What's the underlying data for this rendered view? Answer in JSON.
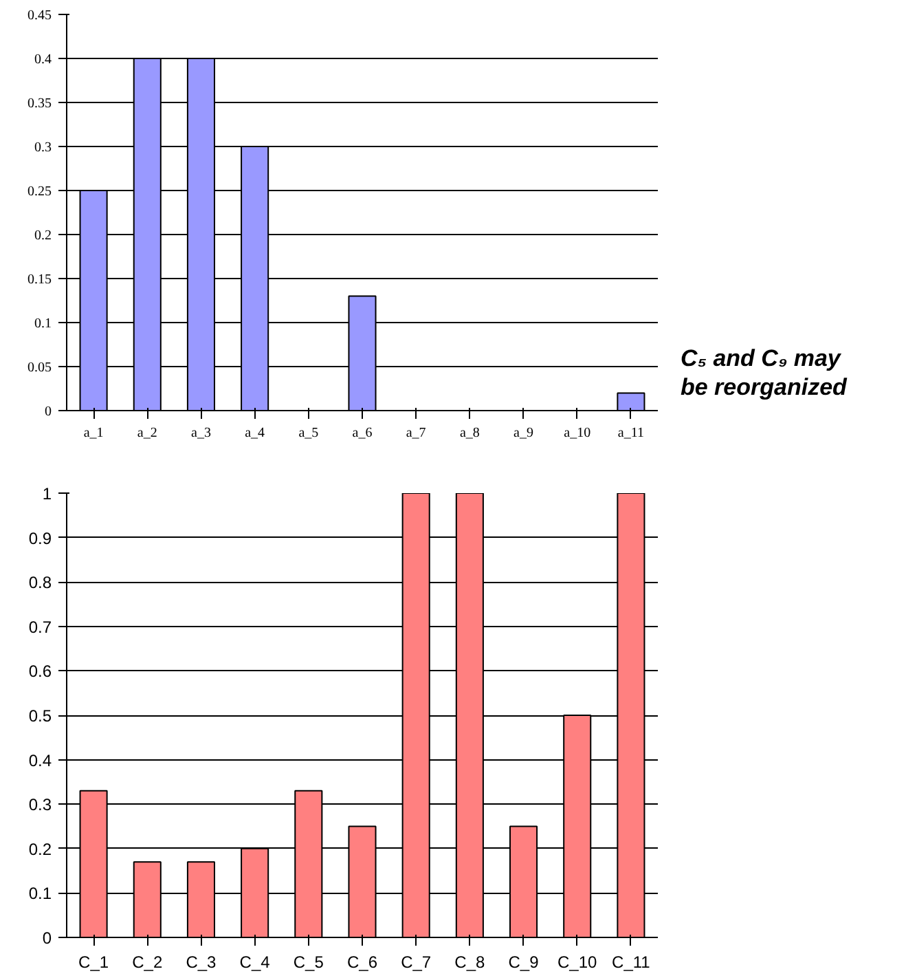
{
  "chart_data": [
    {
      "type": "bar",
      "categories": [
        "a_1",
        "a_2",
        "a_3",
        "a_4",
        "a_5",
        "a_6",
        "a_7",
        "a_8",
        "a_9",
        "a_10",
        "a_11"
      ],
      "values": [
        0.25,
        0.4,
        0.4,
        0.3,
        0,
        0.13,
        0,
        0,
        0,
        0,
        0.02
      ],
      "color": "#9999ff",
      "ylim": [
        0,
        0.45
      ],
      "yticks": [
        0,
        0.05,
        0.1,
        0.15,
        0.2,
        0.25,
        0.3,
        0.35,
        0.4,
        0.45
      ],
      "grid": "y",
      "annotations": [
        "C₅ and C₉ may be reorganized"
      ]
    },
    {
      "type": "bar",
      "categories": [
        "C_1",
        "C_2",
        "C_3",
        "C_4",
        "C_5",
        "C_6",
        "C_7",
        "C_8",
        "C_9",
        "C_10",
        "C_11"
      ],
      "values": [
        0.33,
        0.17,
        0.17,
        0.2,
        0.33,
        0.25,
        1,
        1,
        0.25,
        0.5,
        1
      ],
      "color": "#ff8080",
      "ylim": [
        0,
        1
      ],
      "yticks": [
        0,
        0.1,
        0.2,
        0.3,
        0.4,
        0.5,
        0.6,
        0.7,
        0.8,
        0.9,
        1
      ],
      "grid": "y"
    }
  ]
}
